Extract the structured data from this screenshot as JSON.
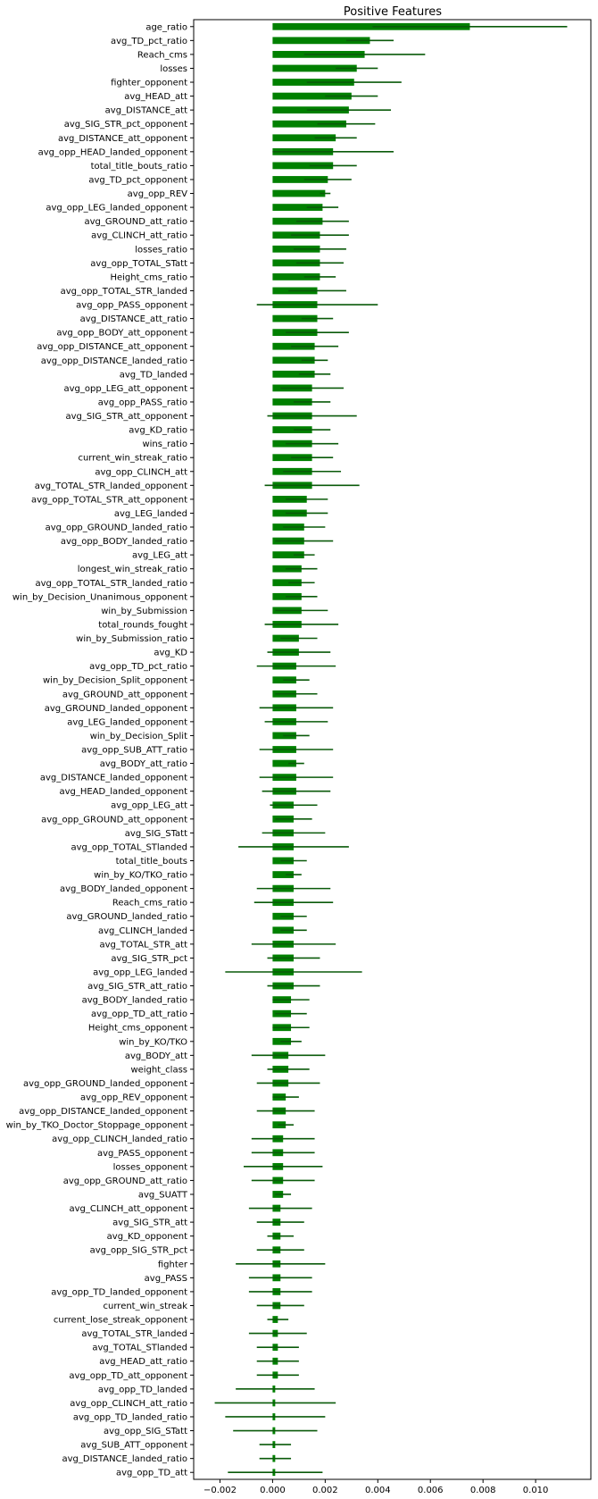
{
  "chart_data": {
    "type": "bar",
    "orientation": "horizontal",
    "title": "Positive Features",
    "xlabel": "",
    "ylabel": "",
    "xlim": [
      -0.003,
      0.0121
    ],
    "x_ticks": [
      -0.002,
      0.0,
      0.002,
      0.004,
      0.006,
      0.008,
      0.01
    ],
    "x_tick_labels": [
      "−0.002",
      "0.000",
      "0.002",
      "0.004",
      "0.006",
      "0.008",
      "0.010"
    ],
    "grid": false,
    "legend": "none",
    "bar_color": "#008000",
    "error_color": "#0a5a0a",
    "categories": [
      "age_ratio",
      "avg_TD_pct_ratio",
      "Reach_cms",
      "losses",
      "fighter_opponent",
      "avg_HEAD_att",
      "avg_DISTANCE_att",
      "avg_SIG_STR_pct_opponent",
      "avg_DISTANCE_att_opponent",
      "avg_opp_HEAD_landed_opponent",
      "total_title_bouts_ratio",
      "avg_TD_pct_opponent",
      "avg_opp_REV",
      "avg_opp_LEG_landed_opponent",
      "avg_GROUND_att_ratio",
      "avg_CLINCH_att_ratio",
      "losses_ratio",
      "avg_opp_TOTAL_STatt",
      "Height_cms_ratio",
      "avg_opp_TOTAL_STR_landed",
      "avg_opp_PASS_opponent",
      "avg_DISTANCE_att_ratio",
      "avg_opp_BODY_att_opponent",
      "avg_opp_DISTANCE_att_opponent",
      "avg_opp_DISTANCE_landed_ratio",
      "avg_TD_landed",
      "avg_opp_LEG_att_opponent",
      "avg_opp_PASS_ratio",
      "avg_SIG_STR_att_opponent",
      "avg_KD_ratio",
      "wins_ratio",
      "current_win_streak_ratio",
      "avg_opp_CLINCH_att",
      "avg_TOTAL_STR_landed_opponent",
      "avg_opp_TOTAL_STR_att_opponent",
      "avg_LEG_landed",
      "avg_opp_GROUND_landed_ratio",
      "avg_opp_BODY_landed_ratio",
      "avg_LEG_att",
      "longest_win_streak_ratio",
      "avg_opp_TOTAL_STR_landed_ratio",
      "win_by_Decision_Unanimous_opponent",
      "win_by_Submission",
      "total_rounds_fought",
      "win_by_Submission_ratio",
      "avg_KD",
      "avg_opp_TD_pct_ratio",
      "win_by_Decision_Split_opponent",
      "avg_GROUND_att_opponent",
      "avg_GROUND_landed_opponent",
      "avg_LEG_landed_opponent",
      "win_by_Decision_Split",
      "avg_opp_SUB_ATT_ratio",
      "avg_BODY_att_ratio",
      "avg_DISTANCE_landed_opponent",
      "avg_HEAD_landed_opponent",
      "avg_opp_LEG_att",
      "avg_opp_GROUND_att_opponent",
      "avg_SIG_STatt",
      "avg_opp_TOTAL_STlanded",
      "total_title_bouts",
      "win_by_KO/TKO_ratio",
      "avg_BODY_landed_opponent",
      "Reach_cms_ratio",
      "avg_GROUND_landed_ratio",
      "avg_CLINCH_landed",
      "avg_TOTAL_STR_att",
      "avg_SIG_STR_pct",
      "avg_opp_LEG_landed",
      "avg_SIG_STR_att_ratio",
      "avg_BODY_landed_ratio",
      "avg_opp_TD_att_ratio",
      "Height_cms_opponent",
      "win_by_KO/TKO",
      "avg_BODY_att",
      "weight_class",
      "avg_opp_GROUND_landed_opponent",
      "avg_opp_REV_opponent",
      "avg_opp_DISTANCE_landed_opponent",
      "win_by_TKO_Doctor_Stoppage_opponent",
      "avg_opp_CLINCH_landed_ratio",
      "avg_PASS_opponent",
      "losses_opponent",
      "avg_opp_GROUND_att_ratio",
      "avg_SUATT",
      "avg_CLINCH_att_opponent",
      "avg_SIG_STR_att",
      "avg_KD_opponent",
      "avg_opp_SIG_STR_pct",
      "fighter",
      "avg_PASS",
      "avg_opp_TD_landed_opponent",
      "current_win_streak",
      "current_lose_streak_opponent",
      "avg_TOTAL_STR_landed",
      "avg_TOTAL_STlanded",
      "avg_HEAD_att_ratio",
      "avg_opp_TD_att_opponent",
      "avg_opp_TD_landed",
      "avg_opp_CLINCH_att_ratio",
      "avg_opp_TD_landed_ratio",
      "avg_opp_SIG_STatt",
      "avg_SUB_ATT_opponent",
      "avg_DISTANCE_landed_ratio",
      "avg_opp_TD_att"
    ],
    "values": [
      0.0075,
      0.0037,
      0.0035,
      0.0032,
      0.0031,
      0.003,
      0.0029,
      0.0028,
      0.0024,
      0.0023,
      0.0023,
      0.0021,
      0.002,
      0.0019,
      0.0019,
      0.0018,
      0.0018,
      0.0018,
      0.0018,
      0.0017,
      0.0017,
      0.0017,
      0.0017,
      0.0016,
      0.0016,
      0.0016,
      0.0015,
      0.0015,
      0.0015,
      0.0015,
      0.0015,
      0.0015,
      0.0015,
      0.0015,
      0.0013,
      0.0013,
      0.0012,
      0.0012,
      0.0012,
      0.0011,
      0.0011,
      0.0011,
      0.0011,
      0.0011,
      0.001,
      0.001,
      0.0009,
      0.0009,
      0.0009,
      0.0009,
      0.0009,
      0.0009,
      0.0009,
      0.0009,
      0.0009,
      0.0009,
      0.0008,
      0.0008,
      0.0008,
      0.0008,
      0.0008,
      0.0008,
      0.0008,
      0.0008,
      0.0008,
      0.0008,
      0.0008,
      0.0008,
      0.0008,
      0.0008,
      0.0007,
      0.0007,
      0.0007,
      0.0007,
      0.0006,
      0.0006,
      0.0006,
      0.0005,
      0.0005,
      0.0005,
      0.0004,
      0.0004,
      0.0004,
      0.0004,
      0.0004,
      0.0003,
      0.0003,
      0.0003,
      0.0003,
      0.0003,
      0.0003,
      0.0003,
      0.0003,
      0.0002,
      0.0002,
      0.0002,
      0.0002,
      0.0002,
      0.0001,
      0.0001,
      0.0001,
      0.0001,
      0.0001,
      0.0001,
      0.0001
    ],
    "errors": [
      0.0037,
      0.0009,
      0.0023,
      0.0008,
      0.0018,
      0.001,
      0.0016,
      0.0011,
      0.0008,
      0.0023,
      0.0009,
      0.0009,
      0.0002,
      0.0006,
      0.001,
      0.0011,
      0.001,
      0.0009,
      0.0006,
      0.0011,
      0.0023,
      0.0006,
      0.0012,
      0.0009,
      0.0005,
      0.0006,
      0.0012,
      0.0007,
      0.0017,
      0.0007,
      0.001,
      0.0008,
      0.0011,
      0.0018,
      0.0008,
      0.0008,
      0.0008,
      0.0011,
      0.0004,
      0.0006,
      0.0005,
      0.0006,
      0.001,
      0.0014,
      0.0007,
      0.0012,
      0.0015,
      0.0005,
      0.0008,
      0.0014,
      0.0012,
      0.0005,
      0.0014,
      0.0003,
      0.0014,
      0.0013,
      0.0009,
      0.0007,
      0.0012,
      0.0021,
      0.0005,
      0.0003,
      0.0014,
      0.0015,
      0.0005,
      0.0005,
      0.0016,
      0.001,
      0.0026,
      0.001,
      0.0007,
      0.0006,
      0.0007,
      0.0004,
      0.0014,
      0.0008,
      0.0012,
      0.0005,
      0.0011,
      0.0003,
      0.0012,
      0.0012,
      0.0015,
      0.0012,
      0.0003,
      0.0012,
      0.0009,
      0.0005,
      0.0009,
      0.0017,
      0.0012,
      0.0012,
      0.0009,
      0.0004,
      0.0011,
      0.0008,
      0.0008,
      0.0008,
      0.0015,
      0.0023,
      0.0019,
      0.0016,
      0.0006,
      0.0006,
      0.0018
    ]
  }
}
